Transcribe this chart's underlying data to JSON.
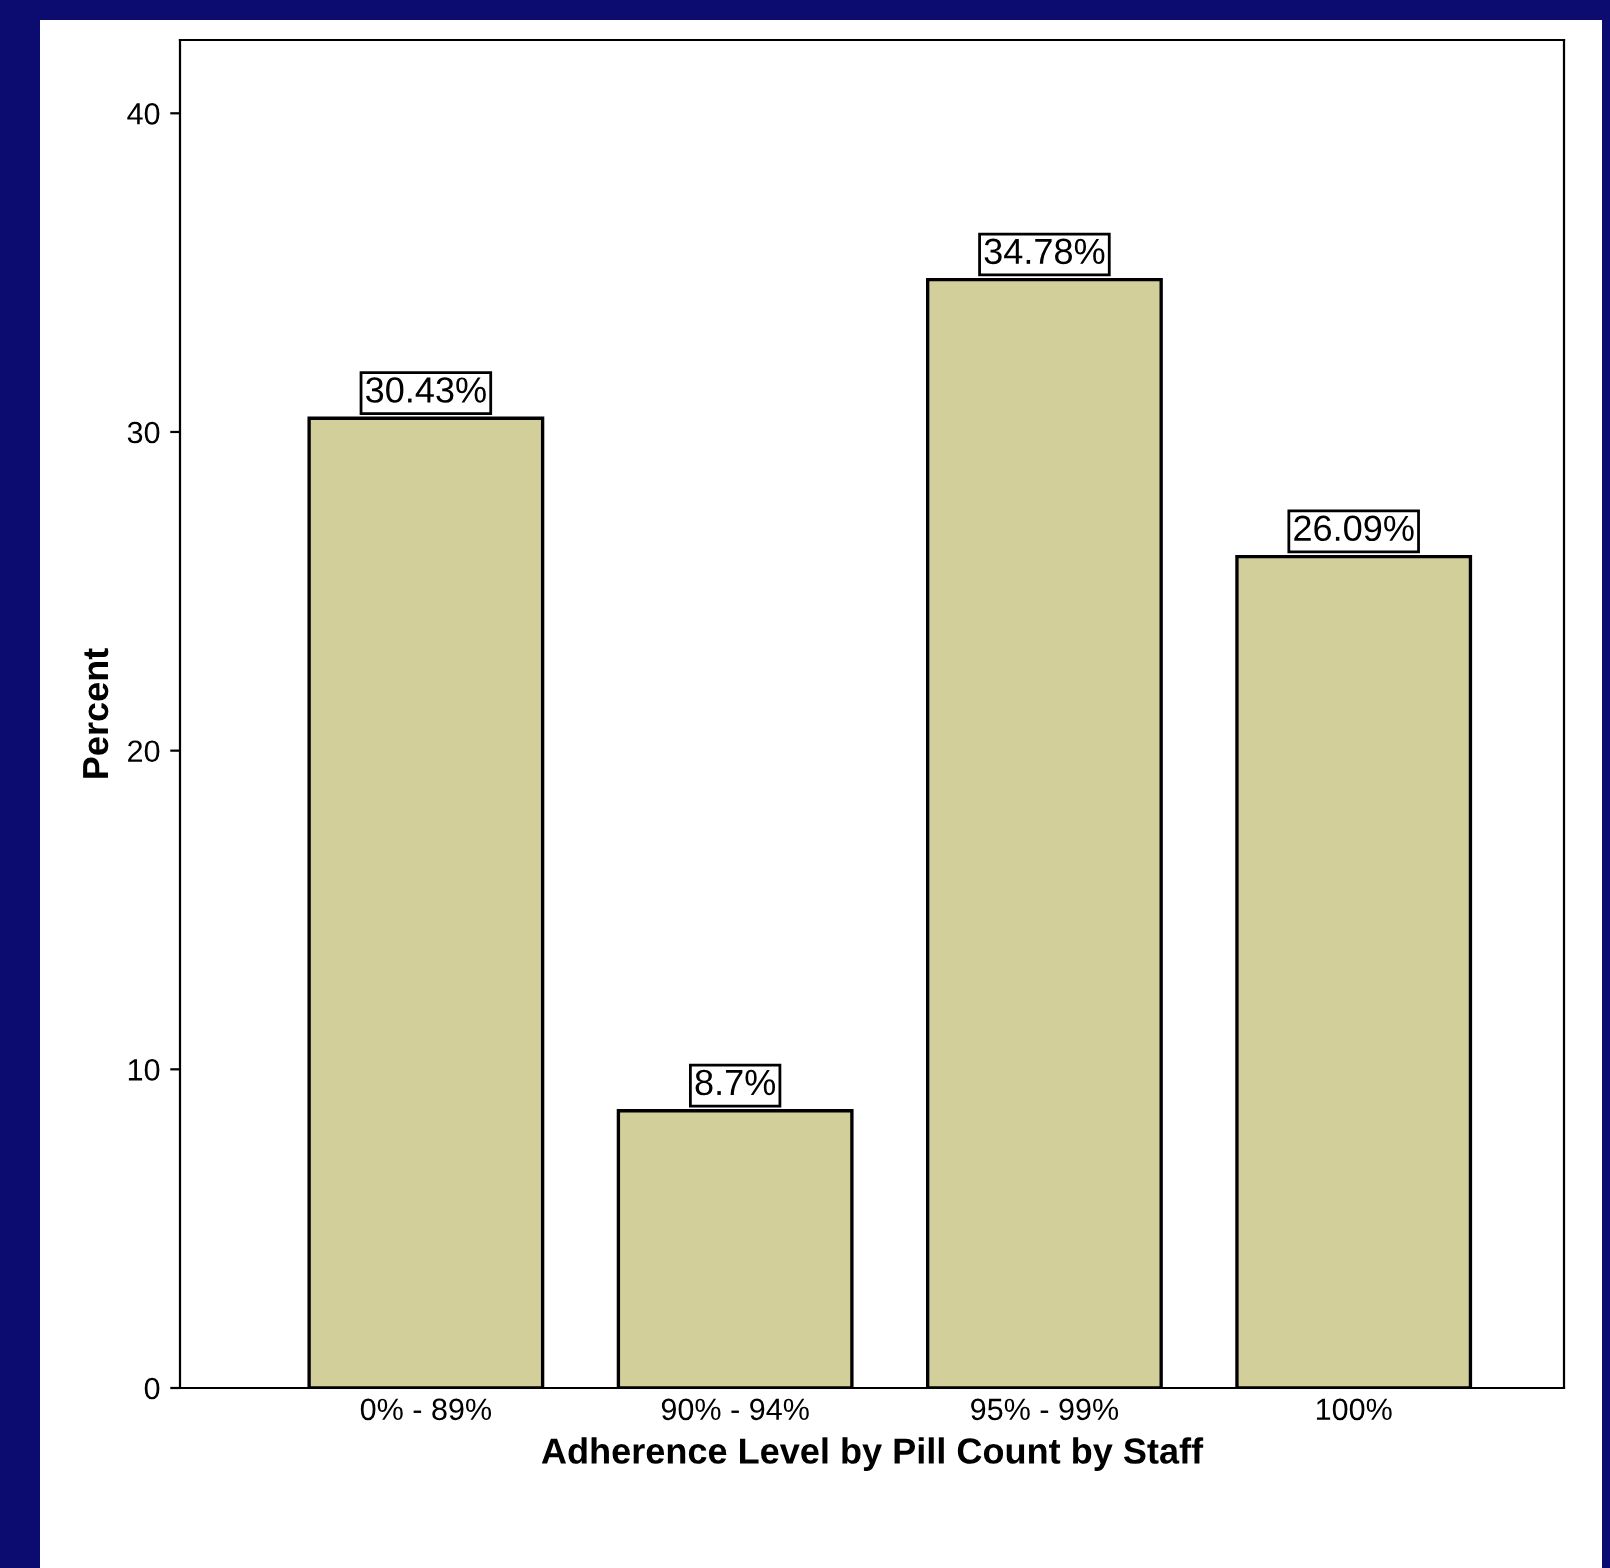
{
  "chart_data": {
    "type": "bar",
    "xlabel": "Adherence Level by Pill Count by Staff",
    "ylabel": "Percent",
    "categories": [
      "0% - 89%",
      "90% - 94%",
      "95% - 99%",
      "100%"
    ],
    "values": [
      30.43,
      8.7,
      34.78,
      26.09
    ],
    "color": "#d3cf9a",
    "value_labels": [
      "30.43%",
      "8.7%",
      "34.78%",
      "26.09%"
    ],
    "ylim": [
      0,
      42.3
    ],
    "yticks": [
      0,
      10,
      20,
      30,
      40
    ],
    "grid": false,
    "legend": false
  }
}
